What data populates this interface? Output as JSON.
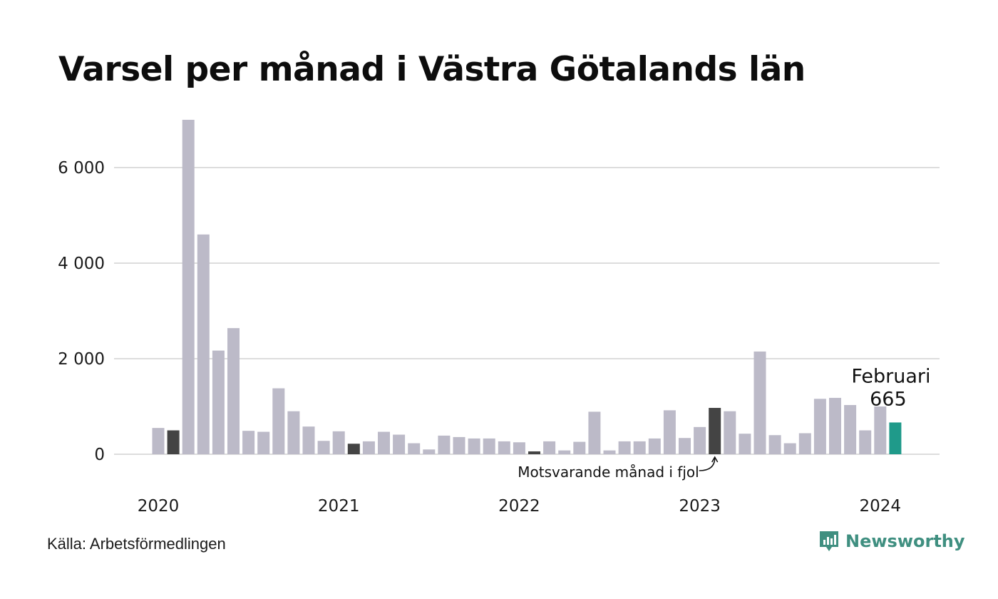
{
  "title": "Varsel per månad i Västra Götalands län",
  "source": "Källa: Arbetsförmedlingen",
  "brand": {
    "name": "Newsworthy",
    "icon": "newsworthy-logo-icon",
    "color": "#3f8f80"
  },
  "colors": {
    "default_bar": "#bcbac8",
    "highlight_bar": "#444444",
    "current_bar": "#1f9a8a",
    "grid": "#dddddd"
  },
  "annotations": {
    "current": {
      "label": "Februari",
      "value_text": "665"
    },
    "previous": {
      "label": "Motsvarande månad i fjol"
    }
  },
  "chart_data": {
    "type": "bar",
    "title": "Varsel per månad i Västra Götalands län",
    "xlabel": "",
    "ylabel": "",
    "ylim": [
      0,
      7000
    ],
    "grid": true,
    "yticks": [
      {
        "value": 0,
        "label": "0"
      },
      {
        "value": 2000,
        "label": "2 000"
      },
      {
        "value": 4000,
        "label": "4 000"
      },
      {
        "value": 6000,
        "label": "6 000"
      }
    ],
    "xticks": [
      {
        "index": 0,
        "label": "2020"
      },
      {
        "index": 12,
        "label": "2021"
      },
      {
        "index": 24,
        "label": "2022"
      },
      {
        "index": 36,
        "label": "2023"
      },
      {
        "index": 48,
        "label": "2024"
      }
    ],
    "months": [
      "2020-01",
      "2020-02",
      "2020-03",
      "2020-04",
      "2020-05",
      "2020-06",
      "2020-07",
      "2020-08",
      "2020-09",
      "2020-10",
      "2020-11",
      "2020-12",
      "2021-01",
      "2021-02",
      "2021-03",
      "2021-04",
      "2021-05",
      "2021-06",
      "2021-07",
      "2021-08",
      "2021-09",
      "2021-10",
      "2021-11",
      "2021-12",
      "2022-01",
      "2022-02",
      "2022-03",
      "2022-04",
      "2022-05",
      "2022-06",
      "2022-07",
      "2022-08",
      "2022-09",
      "2022-10",
      "2022-11",
      "2022-12",
      "2023-01",
      "2023-02",
      "2023-03",
      "2023-04",
      "2023-05",
      "2023-06",
      "2023-07",
      "2023-08",
      "2023-09",
      "2023-10",
      "2023-11",
      "2023-12",
      "2024-01",
      "2024-02"
    ],
    "values": [
      550,
      500,
      7000,
      4600,
      2170,
      2640,
      490,
      470,
      1380,
      900,
      580,
      280,
      480,
      220,
      270,
      470,
      410,
      230,
      100,
      390,
      360,
      330,
      330,
      270,
      250,
      60,
      270,
      80,
      260,
      890,
      80,
      270,
      270,
      330,
      920,
      340,
      570,
      970,
      900,
      430,
      2150,
      400,
      230,
      440,
      1160,
      1180,
      1030,
      500,
      1000,
      665
    ],
    "highlight_indices": [
      1,
      13,
      25,
      37
    ],
    "current_index": 49
  }
}
